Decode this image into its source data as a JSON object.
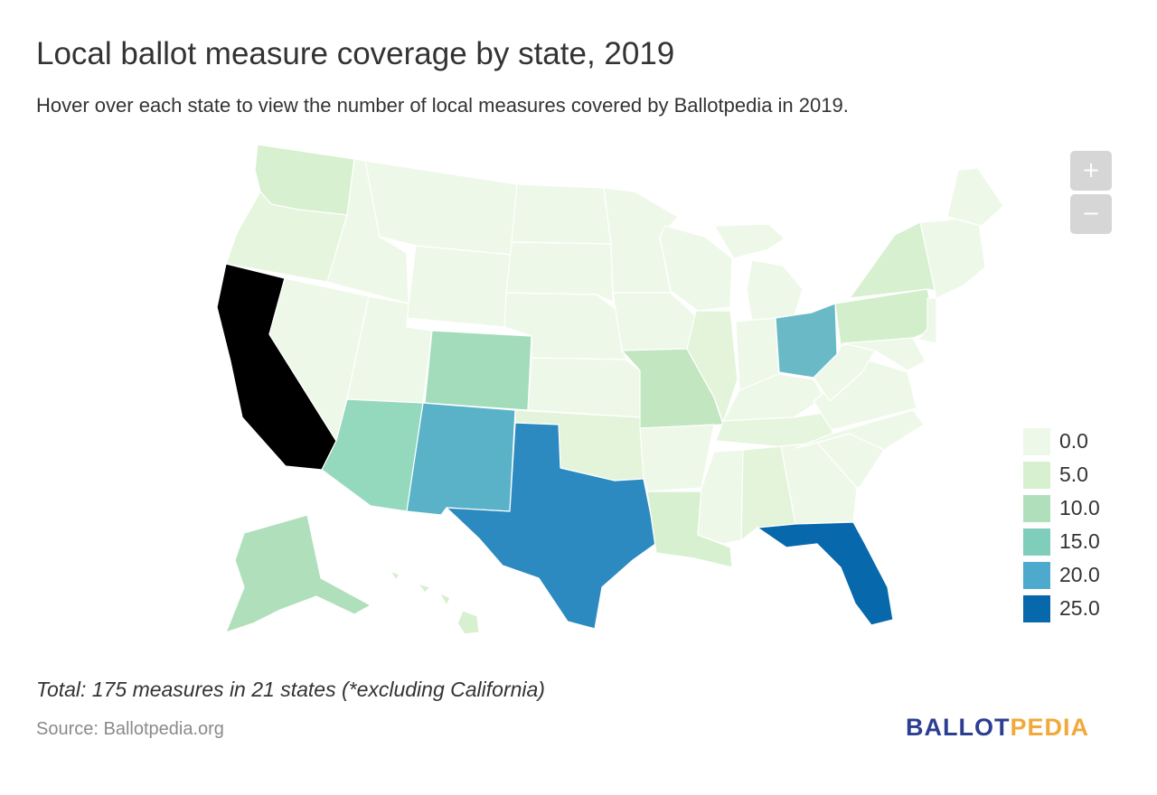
{
  "header": {
    "title": "Local ballot measure coverage by state, 2019",
    "subtitle": "Hover over each state to view the number of local measures covered by Ballotpedia in 2019."
  },
  "zoom": {
    "in_label": "+",
    "out_label": "−"
  },
  "legend": {
    "items": [
      {
        "label": "0.0",
        "color": "#eef8e8"
      },
      {
        "label": "5.0",
        "color": "#d7f0d0"
      },
      {
        "label": "10.0",
        "color": "#b0e0bb"
      },
      {
        "label": "15.0",
        "color": "#7fcdbb"
      },
      {
        "label": "20.0",
        "color": "#4eaacd"
      },
      {
        "label": "25.0",
        "color": "#0868ac"
      }
    ],
    "special_color": "#000000"
  },
  "states": {
    "WA": "#d7f0d0",
    "OR": "#e6f5dd",
    "CA": "#000000",
    "NV": "#eef8e8",
    "ID": "#eef8e8",
    "MT": "#eef8e8",
    "WY": "#eef8e8",
    "UT": "#eef8e8",
    "AZ": "#94d8bd",
    "CO": "#a2dcba",
    "NM": "#5ab2c8",
    "TX": "#2c8ac0",
    "ND": "#eef8e8",
    "SD": "#eef8e8",
    "NE": "#eef8e8",
    "KS": "#eef8e8",
    "OK": "#e3f4db",
    "MN": "#eef8e8",
    "IA": "#eef8e8",
    "MO": "#c2e6bf",
    "AR": "#eef8e8",
    "LA": "#d7f0d0",
    "WI": "#eef8e8",
    "IL": "#e3f4db",
    "MI": "#eef8e8",
    "IN": "#eef8e8",
    "OH": "#6ab9c7",
    "KY": "#eef8e8",
    "TN": "#e6f5dd",
    "MS": "#eef8e8",
    "AL": "#e3f4db",
    "GA": "#eef8e8",
    "FL": "#0868ac",
    "SC": "#eef8e8",
    "NC": "#eef8e8",
    "VA": "#eef8e8",
    "WV": "#eef8e8",
    "PA": "#d2eeca",
    "NY": "#d7f0d0",
    "MD": "#eef8e8",
    "NJ": "#eef8e8",
    "NE_states": "#eef8e8",
    "ME": "#eef8e8",
    "AK": "#b0e0bb",
    "HI": "#d7f0d0"
  },
  "footer": {
    "note": "Total: 175 measures in 21 states (*excluding California)",
    "source": "Source: Ballotpedia.org",
    "logo_part1": "BALLOT",
    "logo_part2": "PEDIA"
  }
}
